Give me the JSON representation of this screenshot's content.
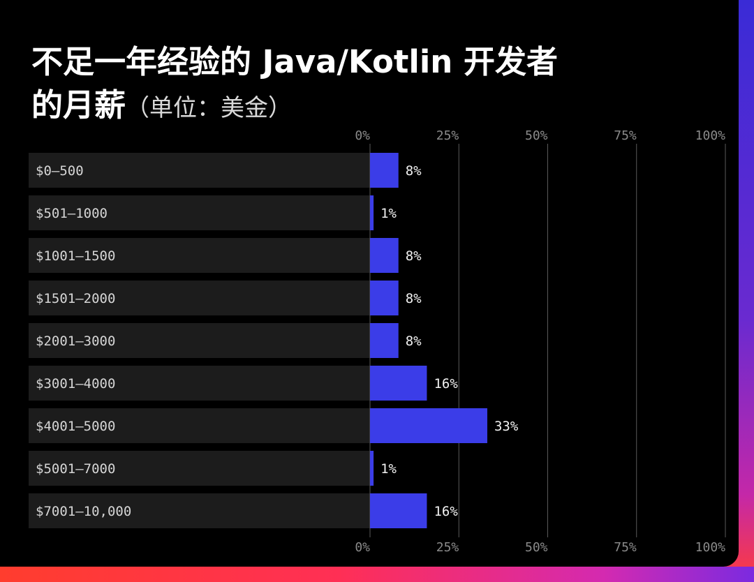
{
  "title": {
    "line1": "不足一年经验的 Java/Kotlin 开发者",
    "line2": "的月薪",
    "unit": "（单位：美金）"
  },
  "colors": {
    "bar": "#3b3de8",
    "row_bg": "#1c1c1c",
    "grid": "#5a5a5a",
    "tick_text": "#8a8a8a",
    "label_text": "#d6d6d6",
    "value_text": "#f2f2f2"
  },
  "chart_data": {
    "type": "bar",
    "orientation": "horizontal",
    "categories": [
      "$0–500",
      "$501–1000",
      "$1001–1500",
      "$1501–2000",
      "$2001–3000",
      "$3001–4000",
      "$4001–5000",
      "$5001–7000",
      "$7001–10,000"
    ],
    "values": [
      8,
      1,
      8,
      8,
      8,
      16,
      33,
      1,
      16
    ],
    "value_labels": [
      "8%",
      "1%",
      "8%",
      "8%",
      "8%",
      "16%",
      "33%",
      "1%",
      "16%"
    ],
    "xlim": [
      0,
      100
    ],
    "ticks": [
      0,
      25,
      50,
      75,
      100
    ],
    "tick_labels": [
      "0%",
      "25%",
      "50%",
      "75%",
      "100%"
    ],
    "grid": true
  }
}
